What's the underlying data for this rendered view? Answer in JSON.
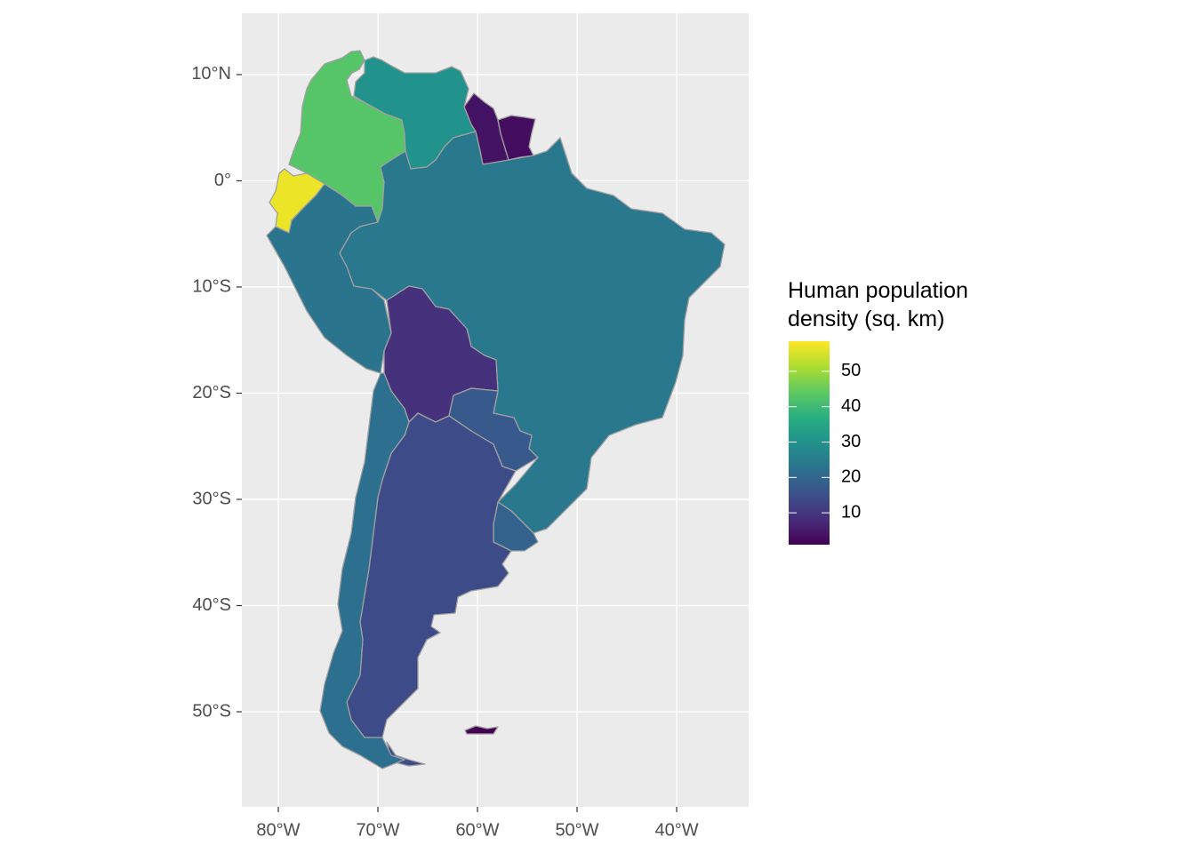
{
  "chart_data": {
    "type": "choropleth",
    "legend_title": "Human population density (sq. km)",
    "colormap": "viridis",
    "colorbar_lim": [
      1,
      58.5
    ],
    "colorbar_ticks": [
      10,
      20,
      30,
      40,
      50
    ],
    "regions": {
      "values": [
        43,
        30,
        4,
        3,
        57,
        23,
        24,
        9,
        17,
        19,
        14,
        22,
        1
      ]
    },
    "xlim": [
      -83.66,
      -32.77
    ],
    "ylim": [
      -58.95,
      15.77
    ],
    "xticks": [
      {
        "value": -80,
        "label": "80°W"
      },
      {
        "value": -70,
        "label": "70°W"
      },
      {
        "value": -60,
        "label": "60°W"
      },
      {
        "value": -50,
        "label": "50°W"
      },
      {
        "value": -40,
        "label": "40°W"
      }
    ],
    "yticks": [
      {
        "value": 10,
        "label": "10°N"
      },
      {
        "value": 0,
        "label": "0°"
      },
      {
        "value": -10,
        "label": "10°S"
      },
      {
        "value": -20,
        "label": "20°S"
      },
      {
        "value": -30,
        "label": "30°S"
      },
      {
        "value": -40,
        "label": "40°S"
      },
      {
        "value": -50,
        "label": "50°S"
      }
    ],
    "grid": true
  }
}
